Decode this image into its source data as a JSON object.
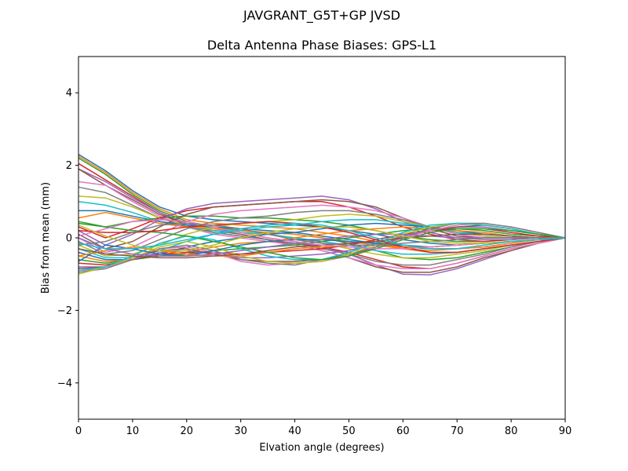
{
  "suptitle": "JAVGRANT_G5T+GP JVSD",
  "chart_data": {
    "type": "line",
    "title": "Delta Antenna Phase Biases: GPS-L1",
    "xlabel": "Elvation angle (degrees)",
    "ylabel": "Bias from mean (mm)",
    "xlim": [
      0,
      90
    ],
    "ylim": [
      -5,
      5
    ],
    "xticks": [
      0,
      10,
      20,
      30,
      40,
      50,
      60,
      70,
      80,
      90
    ],
    "yticks": [
      -4,
      -2,
      0,
      2,
      4
    ],
    "ytick_labels": [
      "−4",
      "−2",
      "0",
      "2",
      "4"
    ],
    "grid": false,
    "x": [
      0,
      5,
      10,
      15,
      20,
      25,
      30,
      35,
      40,
      45,
      50,
      55,
      60,
      65,
      70,
      75,
      80,
      85,
      90
    ],
    "colors": [
      "#1f77b4",
      "#ff7f0e",
      "#2ca02c",
      "#d62728",
      "#9467bd",
      "#8c564b",
      "#e377c2",
      "#7f7f7f",
      "#bcbd22",
      "#17becf"
    ],
    "series": [
      {
        "values": [
          2.3,
          1.85,
          1.3,
          0.85,
          0.6,
          0.5,
          0.45,
          0.4,
          0.35,
          0.3,
          0.2,
          0.1,
          -0.05,
          -0.15,
          -0.2,
          -0.15,
          -0.1,
          -0.05,
          0
        ]
      },
      {
        "values": [
          2.25,
          1.8,
          1.25,
          0.8,
          0.5,
          0.4,
          0.35,
          0.3,
          0.25,
          0.15,
          0.05,
          -0.1,
          -0.3,
          -0.4,
          -0.4,
          -0.3,
          -0.2,
          -0.1,
          0
        ]
      },
      {
        "values": [
          2.2,
          1.75,
          1.2,
          0.75,
          0.45,
          0.3,
          0.2,
          0.15,
          0.1,
          0.0,
          -0.15,
          -0.35,
          -0.55,
          -0.6,
          -0.55,
          -0.4,
          -0.25,
          -0.1,
          0
        ]
      },
      {
        "values": [
          2.05,
          1.6,
          1.15,
          0.7,
          0.35,
          0.15,
          0.05,
          -0.05,
          -0.15,
          -0.25,
          -0.4,
          -0.6,
          -0.8,
          -0.85,
          -0.7,
          -0.5,
          -0.3,
          -0.15,
          0
        ]
      },
      {
        "values": [
          1.9,
          1.55,
          1.1,
          0.7,
          0.4,
          0.25,
          0.15,
          0.0,
          -0.1,
          -0.25,
          -0.45,
          -0.75,
          -1.0,
          -1.02,
          -0.85,
          -0.6,
          -0.35,
          -0.15,
          0
        ]
      },
      {
        "values": [
          1.9,
          1.45,
          1.05,
          0.65,
          0.35,
          0.2,
          0.1,
          -0.05,
          -0.2,
          -0.35,
          -0.55,
          -0.8,
          -0.95,
          -0.95,
          -0.8,
          -0.55,
          -0.35,
          -0.15,
          0
        ]
      },
      {
        "values": [
          1.55,
          1.45,
          1.0,
          0.6,
          0.3,
          0.1,
          0.0,
          -0.1,
          -0.2,
          -0.35,
          -0.55,
          -0.75,
          -0.85,
          -0.85,
          -0.7,
          -0.5,
          -0.3,
          -0.15,
          0
        ]
      },
      {
        "values": [
          1.4,
          1.25,
          0.9,
          0.55,
          0.3,
          0.15,
          0.05,
          -0.05,
          -0.15,
          -0.3,
          -0.45,
          -0.65,
          -0.75,
          -0.75,
          -0.6,
          -0.45,
          -0.25,
          -0.1,
          0
        ]
      },
      {
        "values": [
          1.15,
          1.1,
          0.85,
          0.55,
          0.35,
          0.25,
          0.2,
          0.1,
          0.0,
          -0.15,
          -0.3,
          -0.45,
          -0.55,
          -0.55,
          -0.45,
          -0.35,
          -0.2,
          -0.1,
          0
        ]
      },
      {
        "values": [
          1.0,
          0.9,
          0.7,
          0.45,
          0.3,
          0.2,
          0.15,
          0.1,
          0.0,
          -0.1,
          -0.2,
          -0.35,
          -0.45,
          -0.45,
          -0.4,
          -0.3,
          -0.2,
          -0.1,
          0
        ]
      },
      {
        "values": [
          0.75,
          0.75,
          0.6,
          0.45,
          0.35,
          0.3,
          0.25,
          0.2,
          0.15,
          0.05,
          -0.05,
          -0.15,
          -0.25,
          -0.3,
          -0.3,
          -0.25,
          -0.15,
          -0.05,
          0
        ]
      },
      {
        "values": [
          0.55,
          0.7,
          0.55,
          0.4,
          0.3,
          0.25,
          0.2,
          0.15,
          0.1,
          0.0,
          -0.1,
          -0.2,
          -0.3,
          -0.35,
          -0.3,
          -0.25,
          -0.15,
          -0.05,
          0
        ]
      },
      {
        "values": [
          0.4,
          0.3,
          0.45,
          0.55,
          0.6,
          0.6,
          0.55,
          0.55,
          0.5,
          0.45,
          0.35,
          0.2,
          0.05,
          -0.05,
          -0.1,
          -0.1,
          -0.05,
          0.0,
          0
        ]
      },
      {
        "values": [
          0.3,
          0.0,
          0.25,
          0.55,
          0.75,
          0.85,
          0.9,
          0.95,
          1.0,
          1.0,
          0.85,
          0.6,
          0.3,
          0.1,
          -0.05,
          -0.1,
          -0.05,
          0.0,
          0
        ]
      },
      {
        "values": [
          0.2,
          -0.2,
          0.1,
          0.5,
          0.8,
          0.95,
          1.0,
          1.05,
          1.1,
          1.15,
          1.05,
          0.8,
          0.45,
          0.15,
          0.0,
          -0.05,
          -0.05,
          0.0,
          0
        ]
      },
      {
        "values": [
          0.1,
          -0.3,
          -0.1,
          0.3,
          0.65,
          0.85,
          0.9,
          0.95,
          1.0,
          1.05,
          1.0,
          0.85,
          0.55,
          0.25,
          0.05,
          0.0,
          0.0,
          0.0,
          0
        ]
      },
      {
        "values": [
          0.0,
          -0.4,
          -0.25,
          0.1,
          0.45,
          0.65,
          0.75,
          0.8,
          0.85,
          0.9,
          0.85,
          0.75,
          0.55,
          0.3,
          0.1,
          0.0,
          0.0,
          0.0,
          0
        ]
      },
      {
        "values": [
          -0.1,
          -0.45,
          -0.35,
          -0.05,
          0.25,
          0.45,
          0.55,
          0.6,
          0.7,
          0.75,
          0.75,
          0.65,
          0.5,
          0.3,
          0.15,
          0.05,
          0.0,
          0.0,
          0
        ]
      },
      {
        "values": [
          -0.2,
          -0.5,
          -0.45,
          -0.2,
          0.1,
          0.3,
          0.4,
          0.45,
          0.5,
          0.6,
          0.65,
          0.6,
          0.45,
          0.3,
          0.15,
          0.05,
          0.0,
          0.0,
          0
        ]
      },
      {
        "values": [
          -0.3,
          -0.55,
          -0.55,
          -0.35,
          -0.1,
          0.1,
          0.2,
          0.3,
          0.35,
          0.45,
          0.5,
          0.5,
          0.4,
          0.3,
          0.15,
          0.1,
          0.05,
          0.0,
          0
        ]
      },
      {
        "values": [
          -0.4,
          -0.6,
          -0.6,
          -0.45,
          -0.25,
          -0.1,
          0.0,
          0.1,
          0.15,
          0.25,
          0.35,
          0.4,
          0.35,
          0.3,
          0.2,
          0.1,
          0.05,
          0.0,
          0
        ]
      },
      {
        "values": [
          -0.5,
          -0.65,
          -0.6,
          -0.5,
          -0.4,
          -0.25,
          -0.15,
          -0.1,
          0.0,
          0.1,
          0.2,
          0.25,
          0.3,
          0.25,
          0.2,
          0.15,
          0.05,
          0.0,
          0
        ]
      },
      {
        "values": [
          -0.6,
          -0.7,
          -0.6,
          -0.5,
          -0.45,
          -0.35,
          -0.3,
          -0.25,
          -0.2,
          -0.1,
          0.0,
          0.1,
          0.2,
          0.25,
          0.25,
          0.2,
          0.1,
          0.05,
          0
        ]
      },
      {
        "values": [
          -0.7,
          -0.75,
          -0.6,
          -0.45,
          -0.4,
          -0.4,
          -0.45,
          -0.4,
          -0.35,
          -0.3,
          -0.2,
          -0.05,
          0.1,
          0.2,
          0.25,
          0.25,
          0.15,
          0.05,
          0
        ]
      },
      {
        "values": [
          -0.8,
          -0.8,
          -0.6,
          -0.4,
          -0.35,
          -0.45,
          -0.55,
          -0.55,
          -0.5,
          -0.45,
          -0.35,
          -0.15,
          0.05,
          0.2,
          0.3,
          0.3,
          0.2,
          0.1,
          0
        ]
      },
      {
        "values": [
          -0.85,
          -0.8,
          -0.55,
          -0.35,
          -0.3,
          -0.45,
          -0.6,
          -0.65,
          -0.65,
          -0.6,
          -0.45,
          -0.25,
          0.0,
          0.2,
          0.3,
          0.35,
          0.25,
          0.1,
          0
        ]
      },
      {
        "values": [
          -0.9,
          -0.85,
          -0.55,
          -0.3,
          -0.25,
          -0.4,
          -0.65,
          -0.75,
          -0.7,
          -0.65,
          -0.5,
          -0.3,
          0.0,
          0.2,
          0.35,
          0.4,
          0.3,
          0.15,
          0
        ]
      },
      {
        "values": [
          -0.95,
          -0.85,
          -0.6,
          -0.3,
          -0.2,
          -0.35,
          -0.6,
          -0.7,
          -0.75,
          -0.6,
          -0.5,
          -0.25,
          0.05,
          0.25,
          0.4,
          0.4,
          0.3,
          0.15,
          0
        ]
      },
      {
        "values": [
          -1.0,
          -0.8,
          -0.55,
          -0.25,
          -0.1,
          -0.25,
          -0.5,
          -0.65,
          -0.7,
          -0.65,
          -0.45,
          -0.2,
          0.1,
          0.3,
          0.4,
          0.35,
          0.25,
          0.1,
          0
        ]
      },
      {
        "values": [
          -0.9,
          -0.8,
          -0.5,
          -0.15,
          0.05,
          -0.05,
          -0.3,
          -0.5,
          -0.6,
          -0.6,
          -0.4,
          -0.15,
          0.15,
          0.35,
          0.4,
          0.35,
          0.25,
          0.1,
          0
        ]
      },
      {
        "values": [
          -0.65,
          -0.2,
          -0.3,
          -0.45,
          -0.5,
          -0.35,
          -0.2,
          -0.1,
          -0.05,
          -0.05,
          -0.1,
          -0.15,
          -0.2,
          -0.25,
          -0.2,
          -0.15,
          -0.1,
          -0.05,
          0
        ]
      },
      {
        "values": [
          -0.5,
          -0.35,
          -0.25,
          -0.35,
          -0.45,
          -0.5,
          -0.5,
          -0.4,
          -0.3,
          -0.25,
          -0.2,
          -0.2,
          -0.25,
          -0.25,
          -0.2,
          -0.15,
          -0.1,
          -0.05,
          0
        ]
      },
      {
        "values": [
          0.45,
          0.3,
          0.2,
          0.15,
          0.05,
          -0.1,
          -0.25,
          -0.4,
          -0.55,
          -0.6,
          -0.5,
          -0.3,
          -0.05,
          0.15,
          0.25,
          0.25,
          0.2,
          0.1,
          0
        ]
      },
      {
        "values": [
          0.2,
          0.15,
          0.15,
          0.2,
          0.3,
          0.35,
          0.4,
          0.45,
          0.4,
          0.3,
          0.15,
          -0.05,
          -0.25,
          -0.4,
          -0.4,
          -0.3,
          -0.2,
          -0.1,
          0
        ]
      },
      {
        "values": [
          0.0,
          -0.3,
          -0.45,
          -0.5,
          -0.5,
          -0.45,
          -0.35,
          -0.25,
          -0.15,
          -0.05,
          0.05,
          0.1,
          0.1,
          0.05,
          0.0,
          0.0,
          0.0,
          0.0,
          0
        ]
      },
      {
        "values": [
          -0.3,
          -0.45,
          -0.5,
          -0.55,
          -0.55,
          -0.5,
          -0.45,
          -0.35,
          -0.25,
          -0.2,
          -0.15,
          -0.1,
          0.0,
          0.05,
          0.1,
          0.1,
          0.05,
          0.0,
          0
        ]
      },
      {
        "values": [
          0.05,
          0.25,
          0.45,
          0.5,
          0.45,
          0.3,
          0.15,
          0.0,
          -0.1,
          -0.2,
          -0.25,
          -0.3,
          -0.3,
          -0.25,
          -0.2,
          -0.15,
          -0.1,
          -0.05,
          0
        ]
      },
      {
        "values": [
          -0.2,
          -0.1,
          0.15,
          0.35,
          0.4,
          0.35,
          0.25,
          0.1,
          -0.05,
          -0.15,
          -0.2,
          -0.2,
          -0.15,
          -0.1,
          -0.05,
          0.0,
          0.0,
          0.0,
          0
        ]
      },
      {
        "values": [
          0.35,
          0.05,
          -0.2,
          -0.35,
          -0.35,
          -0.2,
          0.0,
          0.15,
          0.25,
          0.3,
          0.3,
          0.2,
          0.05,
          -0.1,
          -0.15,
          -0.15,
          -0.1,
          -0.05,
          0
        ]
      },
      {
        "values": [
          -0.15,
          -0.3,
          -0.3,
          -0.2,
          -0.05,
          0.1,
          0.25,
          0.35,
          0.4,
          0.35,
          0.2,
          0.0,
          -0.2,
          -0.3,
          -0.3,
          -0.2,
          -0.1,
          -0.05,
          0
        ]
      }
    ]
  }
}
